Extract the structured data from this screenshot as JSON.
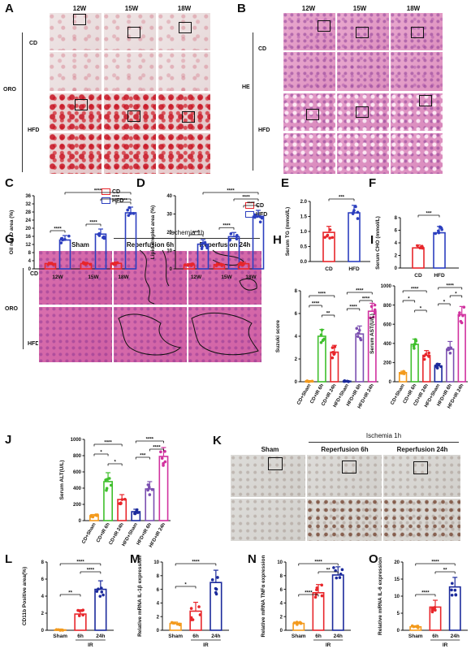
{
  "panels": {
    "A": "A",
    "B": "B",
    "C": "C",
    "D": "D",
    "E": "E",
    "F": "F",
    "G": "G",
    "H": "H",
    "I": "I",
    "J": "J",
    "K": "K",
    "L": "L",
    "M": "M",
    "N": "N",
    "O": "O"
  },
  "micro_A": {
    "cols": [
      "12W",
      "15W",
      "18W"
    ],
    "row_cd": "CD",
    "row_hfd": "HFD",
    "stain": "ORO"
  },
  "micro_B": {
    "cols": [
      "12W",
      "15W",
      "18W"
    ],
    "row_cd": "CD",
    "row_hfd": "HFD",
    "stain": "HE"
  },
  "micro_G": {
    "header": "Ischemia 1h",
    "cols": [
      "Sham",
      "Reperfusion 6h",
      "Reperfusion 24h"
    ],
    "row_cd": "CD",
    "row_hfd": "HFD",
    "stain": "ORO"
  },
  "micro_K": {
    "header": "Ischemia 1h",
    "cols": [
      "Sham",
      "Reperfusion 6h",
      "Reperfusion 24h"
    ]
  },
  "colors": {
    "cd": "#e8262b",
    "hfd": "#2c3fbf",
    "orange": "#f39a1d",
    "green": "#3fbf2c",
    "magenta": "#d1329f",
    "purple": "#7b4fb0",
    "navy": "#1b2a9c"
  },
  "chart_data": [
    {
      "panel": "C",
      "type": "bar",
      "ylabel": "Oil red O area (%)",
      "ylim": [
        0,
        36
      ],
      "yticks": [
        "0",
        "4",
        "8",
        "12",
        "16",
        "20",
        "24",
        "28",
        "32",
        "36"
      ],
      "categories": [
        "12W",
        "15W",
        "18W"
      ],
      "series": [
        {
          "name": "CD",
          "values": [
            2.6,
            2.6,
            2.7
          ],
          "errors": [
            0.6,
            0.6,
            0.6
          ]
        },
        {
          "name": "HFD",
          "values": [
            14.2,
            17.1,
            27.6
          ],
          "errors": [
            2.2,
            2.5,
            2.8
          ]
        }
      ],
      "sig": [
        "****",
        "****",
        "****",
        "****"
      ]
    },
    {
      "panel": "D",
      "type": "bar",
      "ylabel": "Lipid droplet area (%)",
      "ylim": [
        0,
        40
      ],
      "yticks": [
        "0",
        "10",
        "20",
        "30",
        "40"
      ],
      "categories": [
        "12W",
        "15W",
        "18W"
      ],
      "series": [
        {
          "name": "CD",
          "values": [
            2.1,
            2.3,
            2.8
          ],
          "errors": [
            0.7,
            0.6,
            0.8
          ]
        },
        {
          "name": "HFD",
          "values": [
            13.5,
            17.6,
            28.8
          ],
          "errors": [
            2.5,
            2.3,
            3.2
          ]
        }
      ],
      "sig": [
        "****",
        "****",
        "****",
        "****"
      ]
    },
    {
      "panel": "E",
      "type": "bar",
      "ylabel": "Serum TG (mmol/L)",
      "ylim": [
        0,
        2.0
      ],
      "yticks": [
        "0.0",
        "0.5",
        "1.0",
        "1.5",
        "2.0"
      ],
      "categories": [
        "CD",
        "HFD"
      ],
      "values": [
        0.97,
        1.62
      ],
      "errors": [
        0.2,
        0.25
      ],
      "sig": [
        "***"
      ]
    },
    {
      "panel": "F",
      "type": "bar",
      "ylabel": "Serum CHO (mmol/L)",
      "ylim": [
        0,
        8
      ],
      "yticks": [
        "0",
        "2",
        "4",
        "6",
        "8"
      ],
      "categories": [
        "CD",
        "HFD"
      ],
      "values": [
        3.2,
        5.6
      ],
      "errors": [
        0.45,
        1.0
      ],
      "sig": [
        "***"
      ]
    },
    {
      "panel": "H",
      "type": "bar",
      "ylabel": "Suzuki score",
      "ylim": [
        0,
        8
      ],
      "yticks": [
        "0",
        "2",
        "4",
        "6",
        "8"
      ],
      "categories": [
        "CD+Sham",
        "CD+IR 6h",
        "CD+IR 24h",
        "HFD+Sham",
        "HFD+IR 6h",
        "HFD+IR 24h"
      ],
      "values": [
        0.05,
        4.0,
        2.6,
        0.05,
        4.2,
        6.2
      ],
      "errors": [
        0.05,
        0.6,
        0.6,
        0.05,
        0.7,
        0.7
      ],
      "sig": [
        "****",
        "****",
        "**",
        "****",
        "****",
        "****"
      ]
    },
    {
      "panel": "I",
      "type": "bar",
      "ylabel": "Serum AST(U/L)",
      "ylim": [
        0,
        1000
      ],
      "yticks": [
        "0",
        "200",
        "400",
        "600",
        "800",
        "1000"
      ],
      "categories": [
        "CD+Sham",
        "CD+IR 6h",
        "CD+IR 24h",
        "HFD+Sham",
        "HFD+IR 6h",
        "HFD+IR 24h"
      ],
      "values": [
        95,
        390,
        275,
        165,
        340,
        700
      ],
      "errors": [
        15,
        55,
        50,
        25,
        80,
        85
      ],
      "sig": [
        "*",
        "****",
        "*",
        "*",
        "*",
        "****"
      ]
    },
    {
      "panel": "J",
      "type": "bar",
      "ylabel": "Serum ALT(U/L)",
      "ylim": [
        0,
        1000
      ],
      "yticks": [
        "0",
        "200",
        "400",
        "600",
        "800",
        "1000"
      ],
      "categories": [
        "CD+Sham",
        "CD+IR 6h",
        "CD+IR 24h",
        "HFD+Sham",
        "HFD+IR 6h",
        "HFD+IR 24h"
      ],
      "values": [
        60,
        480,
        260,
        110,
        390,
        790
      ],
      "errors": [
        15,
        110,
        60,
        30,
        90,
        110
      ],
      "sig": [
        "*",
        "****",
        "*",
        "***",
        "****",
        "****"
      ]
    },
    {
      "panel": "L",
      "type": "bar",
      "ylabel": "CD11b Positive area(%)",
      "ylim": [
        0,
        8
      ],
      "yticks": [
        "0",
        "2",
        "4",
        "6",
        "8"
      ],
      "categories": [
        "Sham",
        "6h",
        "24h"
      ],
      "group_label": "IR",
      "values": [
        0.05,
        1.9,
        4.8
      ],
      "errors": [
        0.05,
        0.5,
        1.0
      ],
      "sig": [
        "**",
        "****",
        "****"
      ]
    },
    {
      "panel": "M",
      "type": "bar",
      "ylabel": "Relative mRNA IL-1β expression",
      "ylim": [
        0,
        10
      ],
      "yticks": [
        "0",
        "2",
        "4",
        "6",
        "8",
        "10"
      ],
      "categories": [
        "Sham",
        "6h",
        "24h"
      ],
      "group_label": "IR",
      "values": [
        1.0,
        2.8,
        7.0
      ],
      "errors": [
        0.2,
        1.3,
        1.8
      ],
      "sig": [
        "*",
        "****"
      ]
    },
    {
      "panel": "N",
      "type": "bar",
      "ylabel": "Relative mRNA TNFα expression",
      "ylim": [
        0,
        10
      ],
      "yticks": [
        "0",
        "2",
        "4",
        "6",
        "8",
        "10"
      ],
      "categories": [
        "Sham",
        "6h",
        "24h"
      ],
      "group_label": "IR",
      "values": [
        1.0,
        5.5,
        8.1
      ],
      "errors": [
        0.2,
        1.2,
        1.2
      ],
      "sig": [
        "****",
        "**",
        "****"
      ]
    },
    {
      "panel": "O",
      "type": "bar",
      "ylabel": "Relative mRNA IL-6 expression",
      "ylim": [
        0,
        20
      ],
      "yticks": [
        "0",
        "5",
        "10",
        "15",
        "20"
      ],
      "categories": [
        "Sham",
        "6h",
        "24h"
      ],
      "group_label": "IR",
      "values": [
        1.0,
        6.8,
        12.7
      ],
      "errors": [
        0.3,
        2.0,
        2.8
      ],
      "sig": [
        "****",
        "**",
        "****"
      ]
    }
  ]
}
